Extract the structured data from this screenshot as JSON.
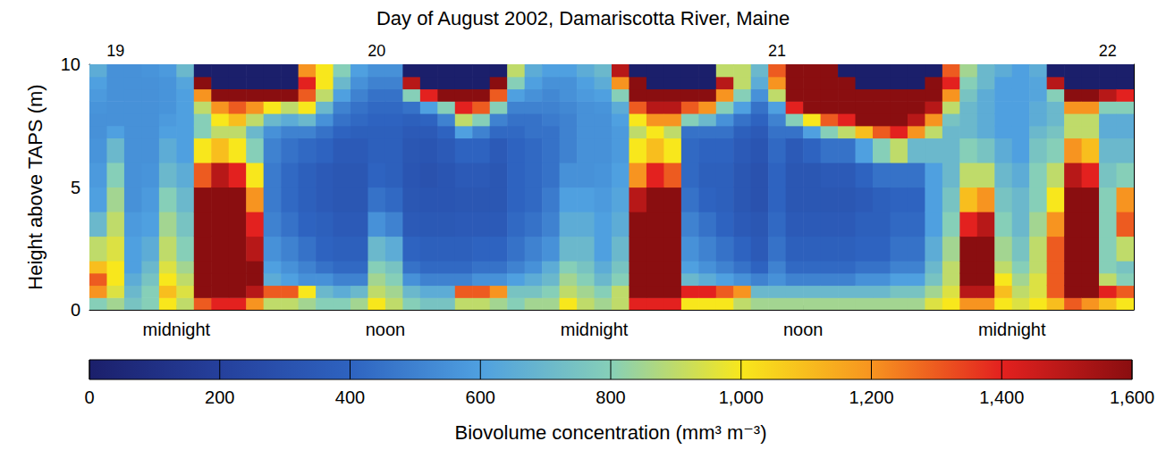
{
  "chart_data": {
    "type": "heatmap",
    "title": "Day of August 2002, Damariscotta River, Maine",
    "ylabel": "Height above TAPS (m)",
    "xlim": [
      19,
      79
    ],
    "xticks": [
      {
        "value": 24,
        "label": "midnight"
      },
      {
        "value": 36,
        "label": "noon"
      },
      {
        "value": 48,
        "label": "midnight"
      },
      {
        "value": 60,
        "label": "noon"
      },
      {
        "value": 72,
        "label": "midnight"
      }
    ],
    "x2ticks": [
      {
        "value": 20.5,
        "label": "19"
      },
      {
        "value": 35.5,
        "label": "20"
      },
      {
        "value": 58.5,
        "label": "21"
      },
      {
        "value": 77.5,
        "label": "22"
      }
    ],
    "ylim": [
      0,
      10
    ],
    "yticks": [
      0,
      5,
      10
    ],
    "cells": {
      "x_edges": [
        19,
        20,
        21,
        22,
        23,
        24,
        25,
        26,
        27,
        28,
        29,
        30,
        31,
        32,
        33,
        34,
        35,
        36,
        37,
        38,
        39,
        40,
        41,
        42,
        43,
        44,
        45,
        46,
        47,
        48,
        49,
        50,
        51,
        52,
        53,
        54,
        55,
        56,
        57,
        58,
        59,
        60,
        61,
        62,
        63,
        64,
        65,
        66,
        67,
        68,
        69,
        70,
        71,
        72,
        73,
        74,
        75,
        76,
        77,
        78,
        79
      ],
      "y_edges": [
        0,
        0.5,
        1,
        1.5,
        2,
        3,
        4,
        5,
        6,
        7,
        7.5,
        8,
        8.5,
        9,
        9.5,
        10
      ],
      "values": [
        [
          800,
          1200,
          1300,
          1100,
          900,
          700,
          600,
          580,
          560,
          550,
          550,
          560,
          580,
          600,
          650
        ],
        [
          850,
          950,
          1000,
          1000,
          950,
          900,
          850,
          800,
          700,
          600,
          550,
          550,
          550,
          550,
          550
        ],
        [
          750,
          700,
          650,
          600,
          600,
          580,
          550,
          550,
          550,
          550,
          550,
          550,
          550,
          550,
          550
        ],
        [
          800,
          800,
          750,
          700,
          650,
          600,
          580,
          560,
          550,
          550,
          550,
          550,
          550,
          550,
          560
        ],
        [
          1000,
          1100,
          1000,
          950,
          900,
          850,
          800,
          700,
          650,
          600,
          580,
          560,
          560,
          560,
          580
        ],
        [
          900,
          950,
          900,
          850,
          800,
          750,
          700,
          650,
          600,
          600,
          600,
          600,
          600,
          620,
          700
        ],
        [
          1300,
          1600,
          1600,
          1600,
          1600,
          1600,
          1600,
          1300,
          1000,
          800,
          800,
          900,
          1200,
          1600,
          0
        ],
        [
          1400,
          1600,
          1600,
          1600,
          1600,
          1600,
          1600,
          1500,
          1100,
          900,
          1000,
          1200,
          1600,
          0,
          0
        ],
        [
          1400,
          1600,
          1600,
          1600,
          1600,
          1600,
          1600,
          1400,
          1000,
          900,
          1100,
          1300,
          1600,
          0,
          0
        ],
        [
          1200,
          1500,
          1600,
          1600,
          1500,
          1400,
          1200,
          1000,
          800,
          700,
          900,
          1200,
          1600,
          0,
          0
        ],
        [
          900,
          1300,
          650,
          600,
          550,
          500,
          480,
          480,
          500,
          550,
          700,
          1000,
          1600,
          0,
          0
        ],
        [
          900,
          1300,
          600,
          550,
          500,
          450,
          420,
          420,
          450,
          500,
          650,
          900,
          1600,
          0,
          0
        ],
        [
          850,
          1000,
          550,
          500,
          450,
          400,
          380,
          380,
          420,
          500,
          700,
          1000,
          1300,
          1400,
          1200
        ],
        [
          800,
          700,
          550,
          450,
          400,
          380,
          350,
          350,
          400,
          450,
          550,
          700,
          900,
          1000,
          1000
        ],
        [
          800,
          650,
          500,
          420,
          380,
          350,
          330,
          330,
          350,
          400,
          450,
          500,
          600,
          700,
          800
        ],
        [
          850,
          700,
          500,
          420,
          380,
          350,
          330,
          330,
          350,
          380,
          420,
          450,
          500,
          550,
          600
        ],
        [
          1000,
          900,
          850,
          800,
          700,
          550,
          450,
          400,
          380,
          380,
          400,
          420,
          450,
          500,
          550
        ],
        [
          900,
          850,
          800,
          750,
          650,
          500,
          420,
          380,
          380,
          380,
          400,
          420,
          450,
          500,
          550
        ],
        [
          800,
          700,
          550,
          450,
          400,
          350,
          330,
          320,
          330,
          350,
          380,
          450,
          800,
          1500,
          0
        ],
        [
          750,
          650,
          500,
          420,
          380,
          340,
          320,
          300,
          320,
          350,
          400,
          600,
          1400,
          0,
          0
        ],
        [
          750,
          650,
          500,
          420,
          380,
          340,
          320,
          320,
          350,
          400,
          500,
          800,
          1600,
          0,
          0
        ],
        [
          900,
          1300,
          500,
          420,
          380,
          350,
          330,
          350,
          400,
          600,
          900,
          1400,
          1600,
          0,
          0
        ],
        [
          900,
          1300,
          550,
          450,
          400,
          350,
          330,
          350,
          400,
          500,
          800,
          1300,
          1600,
          0,
          0
        ],
        [
          850,
          1200,
          550,
          450,
          400,
          350,
          330,
          330,
          350,
          420,
          500,
          800,
          1300,
          1600,
          0
        ],
        [
          800,
          750,
          600,
          500,
          450,
          420,
          400,
          400,
          400,
          420,
          450,
          500,
          600,
          800,
          900
        ],
        [
          850,
          750,
          650,
          550,
          500,
          450,
          420,
          420,
          420,
          450,
          450,
          500,
          550,
          600,
          650
        ],
        [
          850,
          800,
          700,
          650,
          550,
          500,
          480,
          450,
          450,
          450,
          480,
          500,
          520,
          550,
          600
        ],
        [
          1000,
          900,
          850,
          800,
          700,
          650,
          600,
          550,
          500,
          500,
          500,
          520,
          550,
          550,
          600
        ],
        [
          900,
          850,
          800,
          750,
          700,
          650,
          600,
          550,
          550,
          550,
          550,
          550,
          580,
          600,
          650
        ],
        [
          850,
          800,
          700,
          650,
          600,
          600,
          580,
          560,
          550,
          550,
          550,
          560,
          600,
          650,
          700
        ],
        [
          900,
          900,
          800,
          750,
          700,
          650,
          620,
          600,
          580,
          580,
          600,
          650,
          800,
          1200,
          1500
        ],
        [
          1400,
          1600,
          1600,
          1600,
          1600,
          1600,
          1500,
          1200,
          1000,
          900,
          1000,
          1300,
          1600,
          1600,
          0
        ],
        [
          1400,
          1600,
          1600,
          1600,
          1600,
          1600,
          1600,
          1400,
          1100,
          1000,
          1200,
          1500,
          1600,
          0,
          0
        ],
        [
          1400,
          1600,
          1600,
          1600,
          1600,
          1600,
          1600,
          1300,
          1000,
          900,
          1200,
          1500,
          1600,
          0,
          0
        ],
        [
          1000,
          1400,
          700,
          600,
          550,
          500,
          450,
          420,
          420,
          450,
          800,
          1300,
          1600,
          0,
          0
        ],
        [
          1000,
          1400,
          650,
          550,
          500,
          450,
          400,
          380,
          400,
          450,
          700,
          1200,
          1600,
          0,
          0
        ],
        [
          1000,
          1300,
          600,
          500,
          450,
          400,
          380,
          380,
          400,
          450,
          550,
          800,
          1200,
          1500,
          900
        ],
        [
          900,
          1200,
          550,
          450,
          400,
          350,
          330,
          330,
          350,
          380,
          450,
          600,
          800,
          900,
          900
        ],
        [
          850,
          700,
          500,
          400,
          350,
          330,
          300,
          300,
          320,
          350,
          400,
          450,
          550,
          650,
          700
        ],
        [
          850,
          700,
          550,
          500,
          450,
          420,
          400,
          400,
          420,
          450,
          500,
          600,
          900,
          1200,
          1300
        ],
        [
          850,
          700,
          500,
          420,
          380,
          350,
          330,
          330,
          350,
          450,
          800,
          1400,
          1600,
          1600,
          1600
        ],
        [
          850,
          700,
          500,
          420,
          380,
          350,
          330,
          330,
          400,
          600,
          1000,
          1600,
          1600,
          1600,
          1600
        ],
        [
          850,
          700,
          500,
          420,
          380,
          350,
          330,
          350,
          450,
          800,
          1300,
          1600,
          1600,
          1600,
          1600
        ],
        [
          850,
          700,
          500,
          420,
          380,
          350,
          330,
          350,
          450,
          900,
          1400,
          1600,
          1600,
          1600,
          0
        ],
        [
          850,
          700,
          550,
          450,
          400,
          380,
          350,
          400,
          600,
          1100,
          1600,
          1600,
          1600,
          0,
          0
        ],
        [
          850,
          700,
          550,
          450,
          400,
          380,
          380,
          450,
          800,
          1300,
          1600,
          1600,
          1600,
          0,
          0
        ],
        [
          850,
          750,
          600,
          500,
          450,
          420,
          400,
          450,
          900,
          1400,
          1600,
          1600,
          1600,
          0,
          0
        ],
        [
          850,
          750,
          600,
          500,
          450,
          420,
          400,
          450,
          700,
          1200,
          1500,
          1600,
          1600,
          0,
          0
        ],
        [
          950,
          850,
          750,
          700,
          650,
          600,
          600,
          600,
          700,
          900,
          1200,
          1500,
          1600,
          1600,
          0
        ],
        [
          1000,
          950,
          900,
          900,
          850,
          800,
          750,
          700,
          700,
          700,
          750,
          900,
          1200,
          1400,
          1300
        ],
        [
          1200,
          1500,
          1600,
          1600,
          1600,
          1400,
          1100,
          900,
          800,
          700,
          700,
          700,
          750,
          800,
          850
        ],
        [
          1200,
          1500,
          1600,
          1600,
          1600,
          1500,
          1200,
          900,
          750,
          650,
          650,
          650,
          650,
          700,
          700
        ],
        [
          1000,
          1100,
          1000,
          900,
          850,
          800,
          750,
          700,
          650,
          600,
          600,
          600,
          600,
          600,
          650
        ],
        [
          950,
          900,
          850,
          800,
          750,
          700,
          700,
          650,
          600,
          600,
          600,
          600,
          600,
          600,
          600
        ],
        [
          1000,
          950,
          950,
          900,
          900,
          850,
          800,
          800,
          750,
          700,
          650,
          650,
          620,
          620,
          650
        ],
        [
          1100,
          1300,
          1300,
          1300,
          1300,
          1200,
          1000,
          900,
          800,
          750,
          700,
          700,
          800,
          1500,
          0
        ],
        [
          1300,
          1600,
          1600,
          1600,
          1600,
          1600,
          1600,
          1500,
          1200,
          900,
          900,
          1200,
          1600,
          0,
          0
        ],
        [
          1200,
          1600,
          1600,
          1600,
          1600,
          1600,
          1600,
          1400,
          1100,
          900,
          900,
          1200,
          1600,
          0,
          0
        ],
        [
          1100,
          1400,
          900,
          800,
          800,
          800,
          800,
          750,
          700,
          650,
          650,
          800,
          1500,
          0,
          0
        ],
        [
          1000,
          1300,
          800,
          750,
          900,
          1300,
          1200,
          800,
          700,
          650,
          650,
          800,
          1400,
          0,
          0
        ]
      ]
    },
    "colorbar": {
      "label": "Biovolume concentration (mm³ m⁻³)",
      "range": [
        0,
        1600
      ],
      "ticks": [
        0,
        200,
        400,
        600,
        800,
        1000,
        1200,
        1400,
        1600
      ]
    }
  }
}
